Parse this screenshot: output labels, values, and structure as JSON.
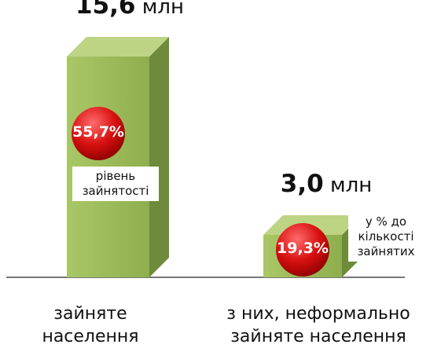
{
  "chart_data": {
    "type": "bar3d",
    "categories": [
      "зайняте населення",
      "з них, неформально зайняте населення"
    ],
    "values": [
      15.6,
      3.0
    ],
    "value_labels": [
      "15,6",
      "3,0"
    ],
    "unit": "млн",
    "color": "#9bbb59",
    "annotations": [
      {
        "badge": "55,7%",
        "caption": "рівень зайнятості"
      },
      {
        "badge": "19,3%",
        "caption": "у % до кількості зайнятих"
      }
    ]
  }
}
